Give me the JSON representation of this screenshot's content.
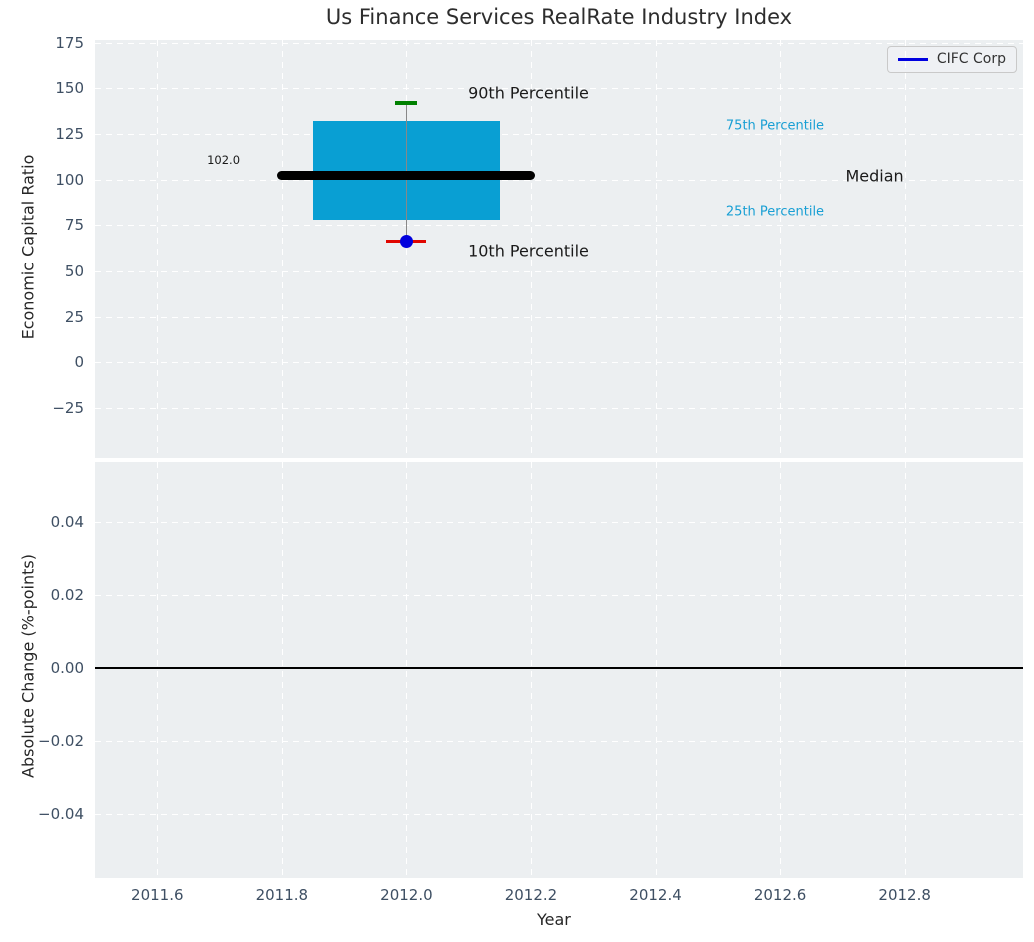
{
  "colors": {
    "panel_bg": "#eceff1",
    "grid": "#ffffff",
    "box_fill": "#099fd3",
    "median_line": "#000000",
    "whisker": "#888888",
    "cap_high": "#008000",
    "cap_low": "#e00600",
    "marker": "#0000dd",
    "zero_line": "#000000",
    "tick_label": "#3e4f63",
    "axis_label": "#262626",
    "title": "#2d2d2d",
    "annotation_dark": "#1a1a1a",
    "annotation_cyan": "#189fd4",
    "legend_line": "#0000e0"
  },
  "chart_data": {
    "type": "boxplot",
    "title": "Us Finance Services RealRate Industry Index",
    "xlabel": "Year",
    "xlim": [
      2011.5,
      2012.99
    ],
    "xticks": [
      {
        "v": 2011.6,
        "label": "2011.6"
      },
      {
        "v": 2011.8,
        "label": "2011.8"
      },
      {
        "v": 2012.0,
        "label": "2012.0"
      },
      {
        "v": 2012.2,
        "label": "2012.2"
      },
      {
        "v": 2012.4,
        "label": "2012.4"
      },
      {
        "v": 2012.6,
        "label": "2012.6"
      },
      {
        "v": 2012.8,
        "label": "2012.8"
      }
    ],
    "legend": {
      "entries": [
        {
          "label": "CIFC Corp",
          "color": "#0000e0"
        }
      ],
      "position": "upper right"
    },
    "top_panel": {
      "ylabel": "Economic Capital Ratio",
      "ylim": [
        -52.5,
        176.5
      ],
      "grid": true,
      "yticks": [
        {
          "v": 175,
          "label": "175"
        },
        {
          "v": 150,
          "label": "150"
        },
        {
          "v": 125,
          "label": "125"
        },
        {
          "v": 100,
          "label": "100"
        },
        {
          "v": 75,
          "label": "75"
        },
        {
          "v": 50,
          "label": "50"
        },
        {
          "v": 25,
          "label": "25"
        },
        {
          "v": 0,
          "label": "0"
        },
        {
          "v": -25,
          "label": "−25"
        }
      ],
      "box": {
        "x": 2012.0,
        "p10": 66,
        "p25": 78,
        "median": 102,
        "p75": 132,
        "p90": 142,
        "box_x_span": [
          2011.85,
          2012.15
        ],
        "median_x_span": [
          2011.792,
          2012.207
        ],
        "median_value_label": "102.0"
      },
      "annotations": [
        {
          "text": "90th Percentile",
          "x": 2012.099,
          "y": 147.5,
          "color": "#1a1a1a",
          "size": 16
        },
        {
          "text": "10th Percentile",
          "x": 2012.099,
          "y": 61.0,
          "color": "#1a1a1a",
          "size": 16
        },
        {
          "text": "75th Percentile",
          "x": 2012.513,
          "y": 129.5,
          "color": "#189fd4",
          "size": 13
        },
        {
          "text": "25th Percentile",
          "x": 2012.513,
          "y": 82.3,
          "color": "#189fd4",
          "size": 13
        },
        {
          "text": "Median",
          "x": 2012.705,
          "y": 102.0,
          "color": "#1a1a1a",
          "size": 16
        },
        {
          "text": "102.0",
          "x": 2011.68,
          "y": 110.8,
          "color": "#1a1a1a",
          "size": 11.5
        }
      ]
    },
    "bottom_panel": {
      "ylabel": "Absolute Change (%-points)",
      "ylim": [
        -0.0575,
        0.0565
      ],
      "grid": true,
      "yticks": [
        {
          "v": 0.04,
          "label": "0.04"
        },
        {
          "v": 0.02,
          "label": "0.02"
        },
        {
          "v": 0.0,
          "label": "0.00"
        },
        {
          "v": -0.02,
          "label": "−0.02"
        },
        {
          "v": -0.04,
          "label": "−0.04"
        }
      ],
      "zero_line": 0.0,
      "series": []
    }
  }
}
